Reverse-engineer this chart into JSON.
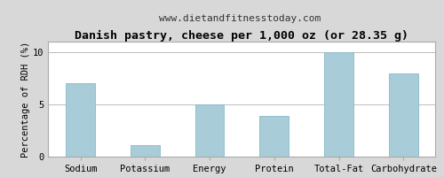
{
  "title": "Danish pastry, cheese per 1,000 oz (or 28.35 g)",
  "subtitle": "www.dietandfitnesstoday.com",
  "categories": [
    "Sodium",
    "Potassium",
    "Energy",
    "Protein",
    "Total-Fat",
    "Carbohydrate"
  ],
  "values": [
    7.0,
    1.1,
    5.0,
    3.9,
    10.0,
    8.0
  ],
  "bar_color": "#a8cdd8",
  "bar_edgecolor": "#88b8c8",
  "ylabel": "Percentage of RDH (%)",
  "ylim": [
    0,
    11
  ],
  "yticks": [
    0,
    5,
    10
  ],
  "fig_bg_color": "#d8d8d8",
  "plot_bg_color": "#ffffff",
  "title_fontsize": 9.5,
  "subtitle_fontsize": 8,
  "ylabel_fontsize": 7.5,
  "tick_fontsize": 7.5,
  "grid_color": "#bbbbbb",
  "border_color": "#aaaaaa"
}
